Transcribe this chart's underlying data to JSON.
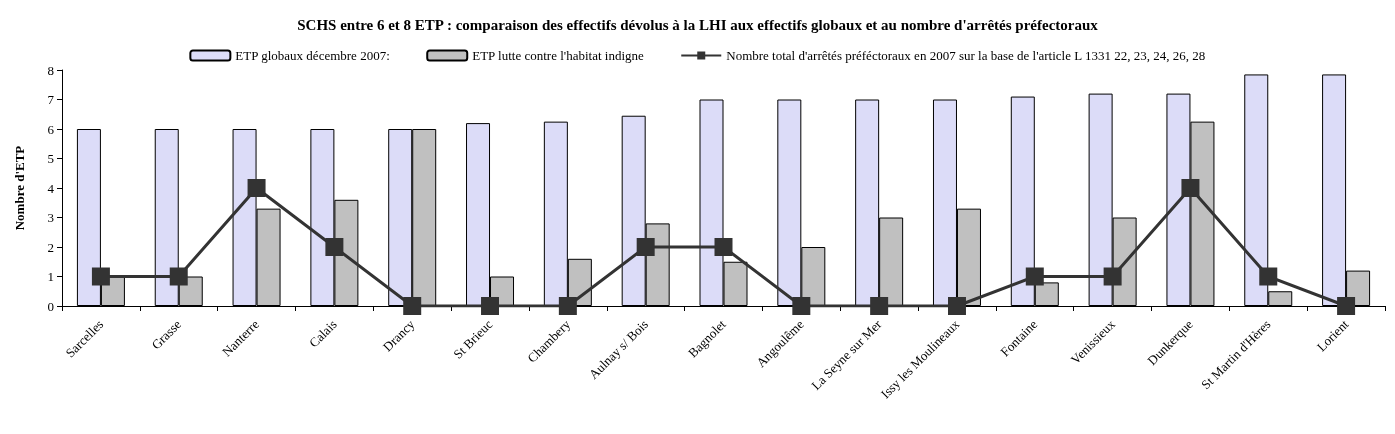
{
  "chart_data": {
    "type": "bar",
    "title": "SCHS entre 6 et 8 ETP : comparaison des effectifs dévolus à la LHI aux effectifs globaux et au nombre d'arrêtés préfectoraux",
    "ylabel": "Nombre d'ETP",
    "categories": [
      "Sarcelles",
      "Grasse",
      "Nanterre",
      "Calais",
      "Drancy",
      "St Brieuc",
      "Chambery",
      "Aulnay s/ Bois",
      "Bagnolet",
      "Angoulême",
      "La Seyne sur Mer",
      "Issy les Moulineaux",
      "Fontaine",
      "Venissieux",
      "Dunkerque",
      "St Martin d'Hères",
      "Lorient"
    ],
    "series": [
      {
        "name": "ETP globaux décembre 2007:",
        "color": "#dcdcf8",
        "values": [
          6,
          6,
          6,
          6,
          6,
          6.2,
          6.25,
          6.45,
          7,
          7,
          7,
          7,
          7.1,
          7.2,
          7.2,
          7.85,
          7.85
        ]
      },
      {
        "name": "ETP lutte contre l'habitat indigne",
        "color": "#c0c0c0",
        "values": [
          1,
          1,
          3.3,
          3.6,
          6,
          1,
          1.6,
          2.8,
          1.5,
          2,
          3,
          3.3,
          0.8,
          3,
          6.25,
          0.5,
          1.2
        ]
      },
      {
        "name": "Nombre total d'arrêtés préféctoraux en 2007 sur la base de l'article L 1331 22, 23, 24, 26, 28",
        "type": "line",
        "color": "#333333",
        "values": [
          1,
          1,
          4,
          2,
          0,
          0,
          0,
          2,
          2,
          0,
          0,
          0,
          1,
          1,
          4,
          1,
          0
        ]
      }
    ],
    "ylim": [
      0,
      8
    ],
    "yticks": [
      0,
      1,
      2,
      3,
      4,
      5,
      6,
      7,
      8
    ],
    "grid": false,
    "legend": "top",
    "marker": "square",
    "line_style": "solid"
  }
}
